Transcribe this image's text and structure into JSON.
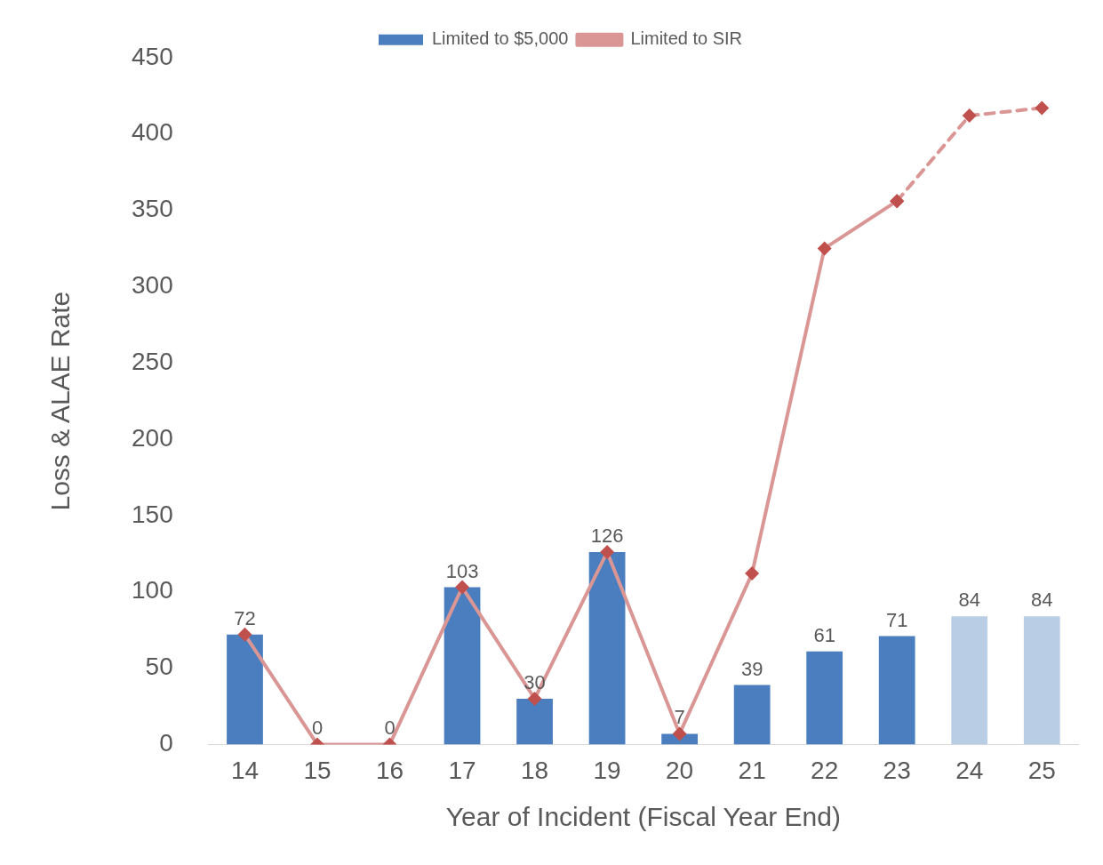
{
  "chart_data": {
    "type": "bar",
    "xlabel": "Year of Incident (Fiscal Year End)",
    "ylabel": "Loss & ALAE Rate",
    "categories": [
      "14",
      "15",
      "16",
      "17",
      "18",
      "19",
      "20",
      "21",
      "22",
      "23",
      "24",
      "25"
    ],
    "series": [
      {
        "name": "Limited to $5,000",
        "colors": [
          "#4a7ebf",
          "#4a7ebf",
          "#4a7ebf",
          "#4a7ebf",
          "#4a7ebf",
          "#4a7ebf",
          "#4a7ebf",
          "#4a7ebf",
          "#4a7ebf",
          "#4a7ebf",
          "#b9cde5",
          "#b9cde5"
        ],
        "color": "#4a7ebf",
        "values": [
          72,
          0,
          0,
          103,
          30,
          126,
          7,
          39,
          61,
          71,
          84,
          84
        ],
        "value_labels": [
          "72",
          "0",
          "0",
          "103",
          "30",
          "126",
          "7",
          "39",
          "61",
          "71",
          "84",
          "84"
        ]
      },
      {
        "name": "Limited to SIR",
        "type": "line",
        "color": "#d99694",
        "marker": "diamond",
        "line_style": "solid",
        "values": [
          72,
          0,
          0,
          103,
          30,
          126,
          7,
          112,
          325,
          356,
          null,
          null
        ]
      },
      {
        "type": "line",
        "color": "#d99694",
        "marker": "diamond",
        "line_style": "dashed",
        "values": [
          null,
          null,
          null,
          null,
          null,
          null,
          null,
          null,
          null,
          356,
          412,
          417
        ]
      }
    ],
    "ylim": [
      0,
      450
    ],
    "yticks": [
      0,
      50,
      100,
      150,
      200,
      250,
      300,
      350,
      400,
      450
    ],
    "grid": false,
    "legend": "top"
  }
}
